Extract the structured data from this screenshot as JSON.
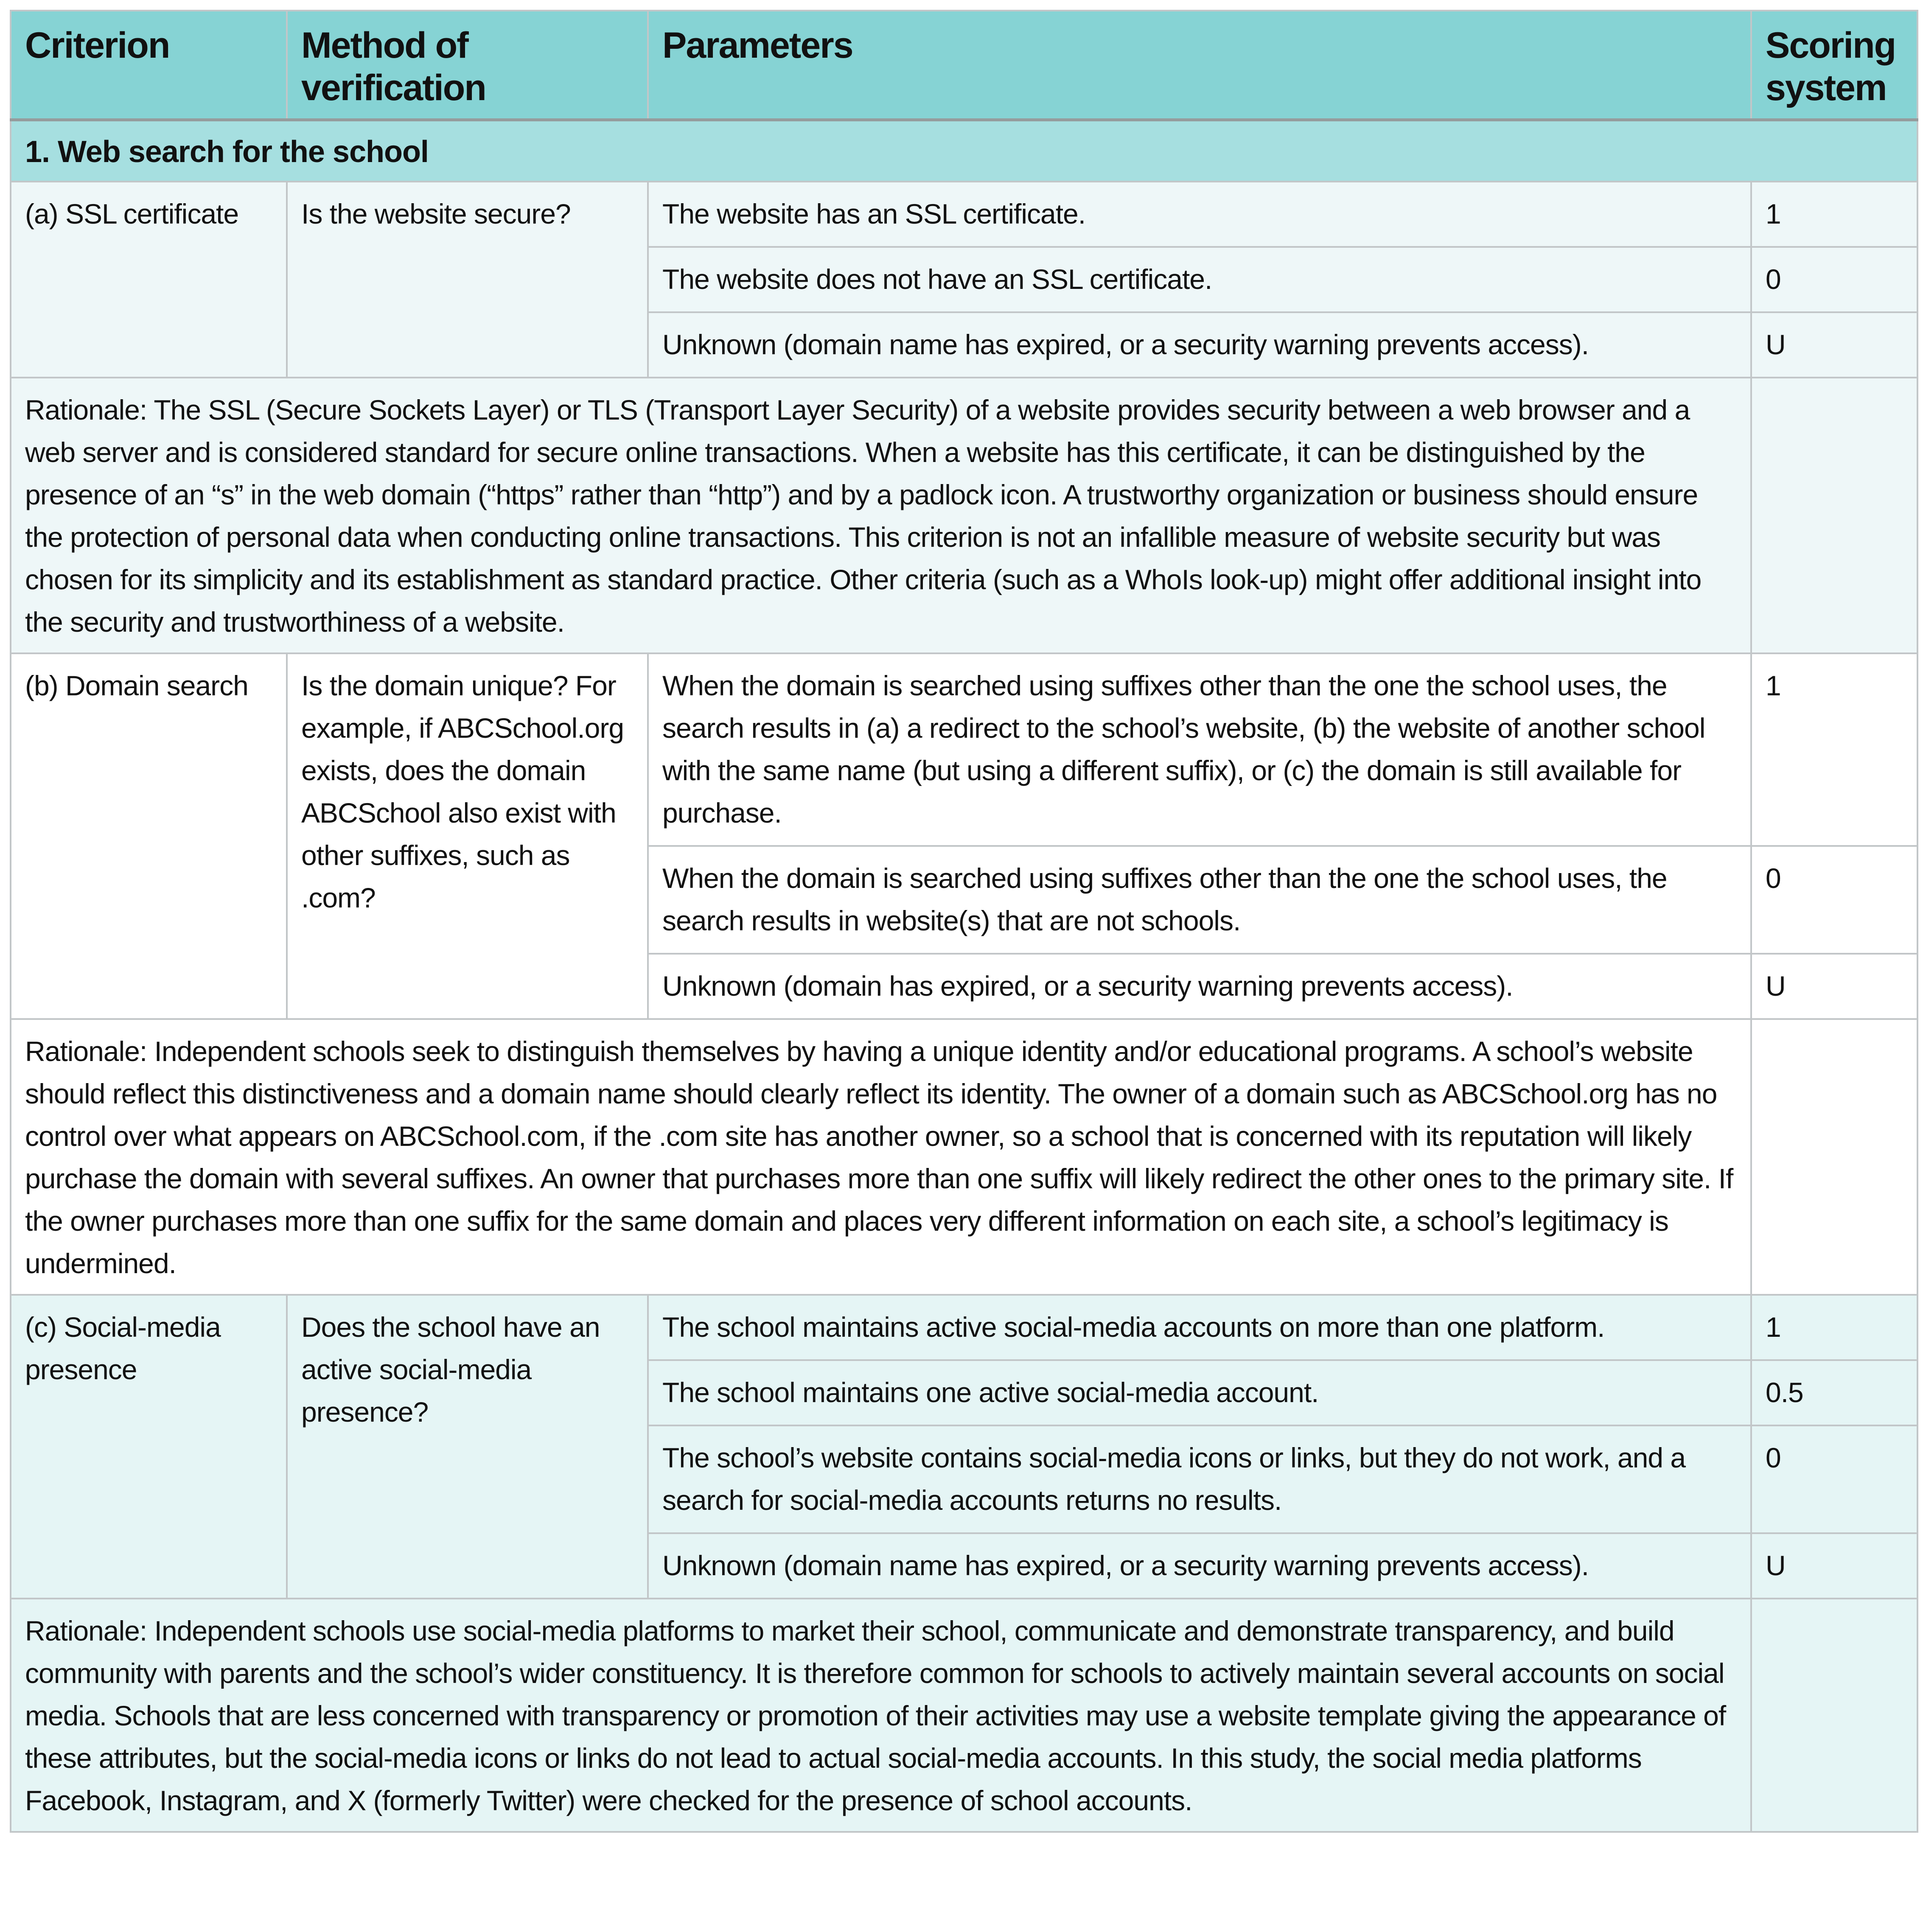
{
  "header": {
    "columns": [
      "Criterion",
      "Method of verification",
      "Parameters",
      "Scoring system"
    ]
  },
  "section": {
    "title": "1. Web search for the school"
  },
  "colors": {
    "header": "#86d3d4",
    "section": "#a6dfe0",
    "group_a": "#eef7f8",
    "group_b": "#ffffff",
    "group_c": "#e5f5f5",
    "border": "#c2c6c8"
  },
  "criteria": [
    {
      "criterion": "(a) SSL certificate",
      "method": "Is the website secure?",
      "params": [
        {
          "text": "The website has an SSL certificate.",
          "score": "1"
        },
        {
          "text": "The website does not have an SSL certificate.",
          "score": "0"
        },
        {
          "text": "Unknown (domain name has expired, or a security warning prevents access).",
          "score": "U"
        }
      ],
      "rationale": "Rationale: The SSL (Secure Sockets Layer) or TLS (Transport Layer Security) of a website provides security between a web browser and a web server and is considered standard for secure online transactions. When a website has this certificate, it can be distinguished by the presence of an “s” in the web domain (“https” rather than “http”) and by a padlock icon. A trustworthy organization or business should ensure the protection of personal data when conducting online transactions. This criterion is not an infallible measure of website security but was chosen for its simplicity and its establishment as standard practice. Other criteria (such as a WhoIs look-up) might offer additional insight into the security and trustworthiness of a website."
    },
    {
      "criterion": "(b) Domain search",
      "method": "Is the domain unique? For example, if ABCSchool.org exists, does the domain ABCSchool also exist with other suffixes, such as .com?",
      "params": [
        {
          "text": "When the domain is searched using suffixes other than the one the school uses, the search results in (a) a redirect to the school’s website, (b) the website of another school with the same name (but using a different suffix), or (c) the domain is still available for purchase.",
          "score": "1"
        },
        {
          "text": "When the domain is searched using suffixes other than the one the school uses, the search results in website(s) that are not schools.",
          "score": "0"
        },
        {
          "text": "Unknown (domain has expired, or a security warning prevents access).",
          "score": "U"
        }
      ],
      "rationale": "Rationale: Independent schools seek to distinguish themselves by having a unique identity and/or educational programs. A school’s website should reflect this distinctiveness and a domain name should clearly reflect its identity. The owner of a domain such as ABCSchool.org has no control over what appears on ABCSchool.com, if the .com site has another owner, so a school that is concerned with its reputation will likely purchase the domain with several suffixes. An owner that purchases more than one suffix will likely redirect the other ones to the primary site. If the owner purchases more than one suffix for the same domain and places very different information on each site, a school’s legitimacy is undermined."
    },
    {
      "criterion": "(c) Social-media presence",
      "method": "Does the school have an active social-media presence?",
      "params": [
        {
          "text": "The school maintains active social-media accounts on more than one platform.",
          "score": "1"
        },
        {
          "text": "The school maintains one active social-media account.",
          "score": "0.5"
        },
        {
          "text": "The school’s website contains social-media icons or links, but they do not work, and a search for social-media accounts returns no results.",
          "score": "0"
        },
        {
          "text": "Unknown (domain name has expired, or a security warning prevents access).",
          "score": "U"
        }
      ],
      "rationale": "Rationale: Independent schools use social-media platforms to market their school, communicate and demonstrate transparency, and build community with parents and the school’s wider constituency. It is therefore common for schools to actively maintain several accounts on social media. Schools that are less concerned with transparency or promotion of their activities may use a website template giving the appearance of these attributes, but the social-media icons or links do not lead to actual social-media accounts. In this study, the social media platforms Facebook, Instagram, and X (formerly Twitter) were checked for the presence of school accounts."
    }
  ]
}
